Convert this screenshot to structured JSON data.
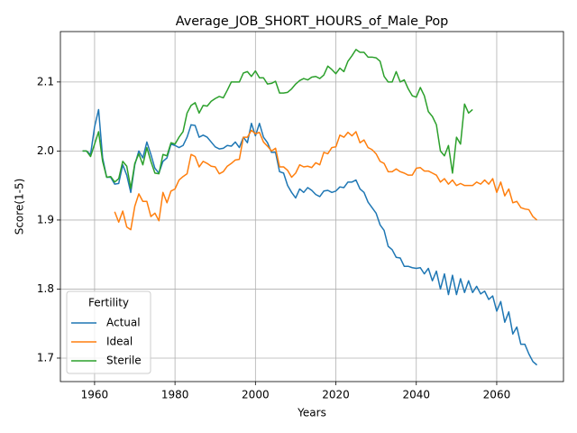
{
  "chart_data": {
    "type": "line",
    "title": "Average_JOB_SHORT_HOURS_of_Male_Pop",
    "x_label": "Years",
    "y_label": "Score(1-5)",
    "x": [
      1957,
      1958,
      1959,
      1960,
      1961,
      1962,
      1963,
      1964,
      1965,
      1966,
      1967,
      1968,
      1969,
      1970,
      1971,
      1972,
      1973,
      1974,
      1975,
      1976,
      1977,
      1978,
      1979,
      1980,
      1981,
      1982,
      1983,
      1984,
      1985,
      1986,
      1987,
      1988,
      1989,
      1990,
      1991,
      1992,
      1993,
      1994,
      1995,
      1996,
      1997,
      1998,
      1999,
      2000,
      2001,
      2002,
      2003,
      2004,
      2005,
      2006,
      2007,
      2008,
      2009,
      2010,
      2011,
      2012,
      2013,
      2014,
      2015,
      2016,
      2017,
      2018,
      2019,
      2020,
      2021,
      2022,
      2023,
      2024,
      2025,
      2026,
      2027,
      2028,
      2029,
      2030,
      2031,
      2032,
      2033,
      2034,
      2035,
      2036,
      2037,
      2038,
      2039,
      2040,
      2041,
      2042,
      2043,
      2044,
      2045,
      2046,
      2047,
      2048,
      2049,
      2050,
      2051,
      2052,
      2053,
      2054,
      2055,
      2056,
      2057,
      2058,
      2059,
      2060,
      2061,
      2062,
      2063,
      2064,
      2065,
      2066,
      2067,
      2068,
      2069,
      2070
    ],
    "series": [
      {
        "name": "Actual",
        "color": "#1f77b4",
        "values": [
          2.0,
          2.0,
          1.995,
          2.035,
          2.06,
          1.99,
          1.962,
          1.962,
          1.952,
          1.953,
          1.98,
          1.965,
          1.94,
          1.98,
          2.0,
          1.99,
          2.013,
          1.995,
          1.975,
          1.968,
          1.985,
          1.99,
          2.01,
          2.008,
          2.005,
          2.008,
          2.02,
          2.038,
          2.037,
          2.02,
          2.023,
          2.02,
          2.013,
          2.006,
          2.003,
          2.004,
          2.008,
          2.007,
          2.013,
          2.005,
          2.02,
          2.012,
          2.04,
          2.022,
          2.04,
          2.02,
          2.012,
          1.998,
          1.998,
          1.97,
          1.968,
          1.95,
          1.94,
          1.932,
          1.945,
          1.94,
          1.947,
          1.943,
          1.937,
          1.934,
          1.942,
          1.943,
          1.94,
          1.942,
          1.948,
          1.947,
          1.955,
          1.955,
          1.958,
          1.945,
          1.94,
          1.926,
          1.918,
          1.91,
          1.893,
          1.885,
          1.862,
          1.857,
          1.846,
          1.845,
          1.833,
          1.833,
          1.831,
          1.83,
          1.831,
          1.822,
          1.83,
          1.812,
          1.826,
          1.8,
          1.822,
          1.792,
          1.82,
          1.792,
          1.815,
          1.795,
          1.812,
          1.795,
          1.804,
          1.793,
          1.797,
          1.785,
          1.79,
          1.768,
          1.782,
          1.752,
          1.767,
          1.735,
          1.745,
          1.72,
          1.72,
          1.706,
          1.695,
          1.69
        ]
      },
      {
        "name": "Ideal",
        "color": "#ff7f0e",
        "values": [
          null,
          null,
          null,
          null,
          null,
          null,
          null,
          null,
          1.912,
          1.897,
          1.913,
          1.89,
          1.886,
          1.92,
          1.938,
          1.927,
          1.927,
          1.905,
          1.91,
          1.899,
          1.94,
          1.925,
          1.942,
          1.945,
          1.958,
          1.963,
          1.967,
          1.995,
          1.992,
          1.977,
          1.985,
          1.982,
          1.978,
          1.977,
          1.967,
          1.97,
          1.978,
          1.982,
          1.987,
          1.988,
          2.02,
          2.02,
          2.03,
          2.025,
          2.027,
          2.013,
          2.007,
          2.0,
          2.004,
          1.977,
          1.977,
          1.972,
          1.962,
          1.968,
          1.98,
          1.977,
          1.978,
          1.976,
          1.983,
          1.98,
          1.998,
          1.996,
          2.005,
          2.006,
          2.023,
          2.02,
          2.027,
          2.022,
          2.028,
          2.012,
          2.016,
          2.005,
          2.002,
          1.996,
          1.985,
          1.982,
          1.97,
          1.97,
          1.974,
          1.97,
          1.968,
          1.965,
          1.965,
          1.975,
          1.976,
          1.971,
          1.971,
          1.968,
          1.965,
          1.955,
          1.96,
          1.952,
          1.958,
          1.95,
          1.953,
          1.95,
          1.95,
          1.95,
          1.955,
          1.952,
          1.958,
          1.952,
          1.96,
          1.94,
          1.955,
          1.935,
          1.945,
          1.925,
          1.927,
          1.918,
          1.916,
          1.915,
          1.905,
          1.9
        ]
      },
      {
        "name": "Sterile",
        "color": "#2ca02c",
        "values": [
          2.0,
          2.0,
          1.992,
          2.01,
          2.028,
          1.985,
          1.962,
          1.963,
          1.955,
          1.96,
          1.985,
          1.978,
          1.946,
          1.982,
          1.996,
          1.98,
          2.005,
          1.985,
          1.968,
          1.967,
          1.995,
          1.993,
          2.012,
          2.01,
          2.02,
          2.028,
          2.055,
          2.066,
          2.07,
          2.055,
          2.066,
          2.065,
          2.072,
          2.076,
          2.079,
          2.077,
          2.088,
          2.1,
          2.1,
          2.1,
          2.113,
          2.115,
          2.108,
          2.116,
          2.106,
          2.106,
          2.097,
          2.098,
          2.101,
          2.084,
          2.084,
          2.085,
          2.09,
          2.097,
          2.102,
          2.105,
          2.103,
          2.107,
          2.108,
          2.105,
          2.11,
          2.123,
          2.118,
          2.112,
          2.12,
          2.115,
          2.13,
          2.138,
          2.147,
          2.143,
          2.143,
          2.136,
          2.136,
          2.135,
          2.13,
          2.108,
          2.1,
          2.1,
          2.115,
          2.1,
          2.103,
          2.09,
          2.08,
          2.078,
          2.092,
          2.08,
          2.057,
          2.05,
          2.038,
          2.0,
          1.993,
          2.008,
          1.968,
          2.02,
          2.01,
          2.068,
          2.055,
          2.06,
          null,
          null,
          null,
          null,
          null,
          null,
          null,
          null,
          null,
          null,
          null,
          null,
          null,
          null,
          null,
          null
        ]
      }
    ],
    "xlim": [
      1951.5,
      2076.6
    ],
    "xticks": [
      1960,
      1980,
      2000,
      2020,
      2040,
      2060
    ],
    "ylim": [
      1.666,
      2.173
    ],
    "yticks": [
      1.7,
      1.8,
      1.9,
      {
        "value": 2.0,
        "label": "2.0"
      },
      2.1
    ],
    "grid": true,
    "legend_title": "Fertility",
    "legend_loc": "lower left"
  }
}
